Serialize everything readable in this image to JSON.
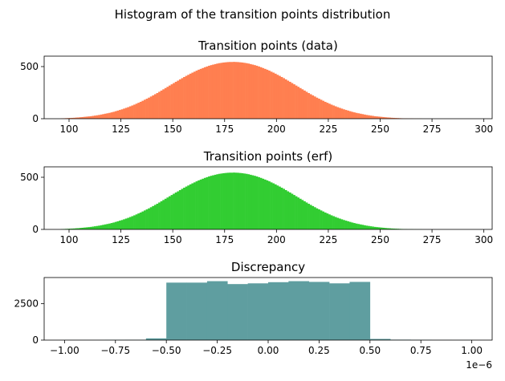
{
  "suptitle": "Histogram of the transition points distribution",
  "chart_data": [
    {
      "type": "bar",
      "title": "Transition points (data)",
      "color": "#ff7f50",
      "xlim": [
        88,
        304
      ],
      "ylim": [
        0,
        600
      ],
      "xticks": [
        100,
        125,
        150,
        175,
        200,
        225,
        250,
        275,
        300
      ],
      "yticks": [
        0,
        500
      ],
      "grid": false,
      "bin_width": 1,
      "bins_x0": [
        96,
        97,
        98,
        99,
        100,
        101,
        102,
        103,
        104,
        105,
        106,
        107,
        108,
        109,
        110,
        111,
        112,
        113,
        114,
        115,
        116,
        117,
        118,
        119,
        120,
        121,
        122,
        123,
        124,
        125,
        126,
        127,
        128,
        129,
        130,
        131,
        132,
        133,
        134,
        135,
        136,
        137,
        138,
        139,
        140,
        141,
        142,
        143,
        144,
        145,
        146,
        147,
        148,
        149,
        150,
        151,
        152,
        153,
        154,
        155,
        156,
        157,
        158,
        159,
        160,
        161,
        162,
        163,
        164,
        165,
        166,
        167,
        168,
        169,
        170,
        171,
        172,
        173,
        174,
        175,
        176,
        177,
        178,
        179,
        180,
        181,
        182,
        183,
        184,
        185,
        186,
        187,
        188,
        189,
        190,
        191,
        192,
        193,
        194,
        195,
        196,
        197,
        198,
        199,
        200,
        201,
        202,
        203,
        204,
        205,
        206,
        207,
        208,
        209,
        210,
        211,
        212,
        213,
        214,
        215,
        216,
        217,
        218,
        219,
        220,
        221,
        222,
        223,
        224,
        225,
        226,
        227,
        228,
        229,
        230,
        231,
        232,
        233,
        234,
        235,
        236,
        237,
        238,
        239,
        240,
        241,
        242,
        243,
        244,
        245,
        246,
        247,
        248,
        249,
        250,
        251,
        252,
        253,
        254,
        255,
        256,
        257,
        258,
        259,
        260,
        261,
        262,
        263,
        264,
        265,
        266,
        267,
        268,
        269,
        270,
        271,
        272,
        273,
        274,
        275,
        276,
        277,
        278,
        279,
        280,
        281,
        282,
        283,
        284,
        285,
        286,
        287
      ],
      "values": [
        3,
        4,
        5,
        6,
        7,
        8,
        9,
        11,
        12,
        14,
        16,
        18,
        20,
        22,
        24,
        27,
        30,
        33,
        36,
        40,
        44,
        48,
        52,
        56,
        61,
        66,
        72,
        78,
        84,
        90,
        97,
        104,
        111,
        119,
        127,
        135,
        144,
        153,
        162,
        172,
        182,
        192,
        202,
        213,
        224,
        235,
        246,
        258,
        270,
        282,
        294,
        306,
        318,
        330,
        342,
        354,
        365,
        377,
        389,
        400,
        411,
        421,
        432,
        442,
        451,
        461,
        470,
        478,
        486,
        494,
        501,
        508,
        514,
        519,
        524,
        529,
        533,
        536,
        539,
        541,
        543,
        544,
        544,
        545,
        544,
        543,
        541,
        539,
        536,
        533,
        529,
        524,
        519,
        514,
        508,
        501,
        494,
        486,
        478,
        470,
        461,
        451,
        442,
        432,
        421,
        411,
        400,
        389,
        377,
        365,
        354,
        342,
        330,
        318,
        306,
        294,
        282,
        270,
        258,
        246,
        235,
        224,
        213,
        202,
        192,
        182,
        172,
        162,
        153,
        144,
        135,
        127,
        119,
        111,
        104,
        97,
        90,
        84,
        78,
        72,
        66,
        61,
        56,
        52,
        48,
        44,
        40,
        36,
        33,
        30,
        27,
        24,
        22,
        20,
        18,
        16,
        14,
        12,
        11,
        9,
        8,
        7,
        6,
        5,
        4,
        3,
        3,
        2,
        2,
        2,
        1,
        1,
        1,
        1,
        0,
        0,
        0,
        0,
        0,
        0,
        0,
        0,
        0,
        0,
        0,
        0,
        0,
        0,
        0,
        0,
        0,
        0
      ]
    },
    {
      "type": "bar",
      "title": "Transition points (erf)",
      "color": "#32cd32",
      "xlim": [
        88,
        304
      ],
      "ylim": [
        0,
        600
      ],
      "xticks": [
        100,
        125,
        150,
        175,
        200,
        225,
        250,
        275,
        300
      ],
      "yticks": [
        0,
        500
      ],
      "grid": false,
      "bin_width": 1,
      "bins_x0": [
        96,
        97,
        98,
        99,
        100,
        101,
        102,
        103,
        104,
        105,
        106,
        107,
        108,
        109,
        110,
        111,
        112,
        113,
        114,
        115,
        116,
        117,
        118,
        119,
        120,
        121,
        122,
        123,
        124,
        125,
        126,
        127,
        128,
        129,
        130,
        131,
        132,
        133,
        134,
        135,
        136,
        137,
        138,
        139,
        140,
        141,
        142,
        143,
        144,
        145,
        146,
        147,
        148,
        149,
        150,
        151,
        152,
        153,
        154,
        155,
        156,
        157,
        158,
        159,
        160,
        161,
        162,
        163,
        164,
        165,
        166,
        167,
        168,
        169,
        170,
        171,
        172,
        173,
        174,
        175,
        176,
        177,
        178,
        179,
        180,
        181,
        182,
        183,
        184,
        185,
        186,
        187,
        188,
        189,
        190,
        191,
        192,
        193,
        194,
        195,
        196,
        197,
        198,
        199,
        200,
        201,
        202,
        203,
        204,
        205,
        206,
        207,
        208,
        209,
        210,
        211,
        212,
        213,
        214,
        215,
        216,
        217,
        218,
        219,
        220,
        221,
        222,
        223,
        224,
        225,
        226,
        227,
        228,
        229,
        230,
        231,
        232,
        233,
        234,
        235,
        236,
        237,
        238,
        239,
        240,
        241,
        242,
        243,
        244,
        245,
        246,
        247,
        248,
        249,
        250,
        251,
        252,
        253,
        254,
        255,
        256,
        257,
        258,
        259,
        260,
        261,
        262,
        263,
        264,
        265,
        266,
        267,
        268,
        269,
        270,
        271,
        272,
        273,
        274,
        275,
        276,
        277,
        278,
        279,
        280,
        281,
        282,
        283,
        284,
        285,
        286,
        287
      ],
      "values": [
        3,
        4,
        5,
        6,
        7,
        8,
        9,
        11,
        12,
        14,
        16,
        18,
        20,
        22,
        24,
        27,
        30,
        33,
        36,
        40,
        44,
        48,
        52,
        56,
        61,
        66,
        72,
        78,
        84,
        90,
        97,
        104,
        111,
        119,
        127,
        135,
        144,
        153,
        162,
        172,
        182,
        192,
        202,
        213,
        224,
        235,
        246,
        258,
        270,
        282,
        294,
        306,
        318,
        330,
        342,
        354,
        365,
        377,
        389,
        400,
        411,
        421,
        432,
        442,
        451,
        461,
        470,
        478,
        486,
        494,
        501,
        508,
        514,
        519,
        524,
        529,
        533,
        536,
        539,
        541,
        543,
        544,
        544,
        545,
        544,
        543,
        541,
        539,
        536,
        533,
        529,
        524,
        519,
        514,
        508,
        501,
        494,
        486,
        478,
        470,
        461,
        451,
        442,
        432,
        421,
        411,
        400,
        389,
        377,
        365,
        354,
        342,
        330,
        318,
        306,
        294,
        282,
        270,
        258,
        246,
        235,
        224,
        213,
        202,
        192,
        182,
        172,
        162,
        153,
        144,
        135,
        127,
        119,
        111,
        104,
        97,
        90,
        84,
        78,
        72,
        66,
        61,
        56,
        52,
        48,
        44,
        40,
        36,
        33,
        30,
        27,
        24,
        22,
        20,
        18,
        16,
        14,
        12,
        11,
        9,
        8,
        7,
        6,
        5,
        4,
        3,
        3,
        2,
        2,
        2,
        1,
        1,
        1,
        1,
        0,
        0,
        0,
        0,
        0,
        0,
        0,
        0,
        0,
        0,
        0,
        0,
        0,
        0,
        0,
        0,
        0,
        0
      ]
    },
    {
      "type": "bar",
      "title": "Discrepancy",
      "color": "#5f9ea0",
      "xlim": [
        -1.1,
        1.1
      ],
      "ylim": [
        0,
        4300
      ],
      "xticks": [
        -1.0,
        -0.75,
        -0.5,
        -0.25,
        0.0,
        0.25,
        0.5,
        0.75,
        1.0
      ],
      "xticklabels": [
        "−1.00",
        "−0.75",
        "−0.50",
        "−0.25",
        "0.00",
        "0.25",
        "0.50",
        "0.75",
        "1.00"
      ],
      "yticks": [
        0,
        2500
      ],
      "x_offset_label": "1e−6",
      "grid": false,
      "bin_width": 0.1,
      "bins_x0": [
        -1.0,
        -0.9,
        -0.8,
        -0.7,
        -0.6,
        -0.5,
        -0.4,
        -0.3,
        -0.2,
        -0.1,
        0.0,
        0.1,
        0.2,
        0.3,
        0.4,
        0.5,
        0.6,
        0.7,
        0.8,
        0.9
      ],
      "values": [
        8,
        10,
        15,
        20,
        120,
        3950,
        3950,
        4050,
        3850,
        3900,
        3980,
        4050,
        4000,
        3900,
        4000,
        80,
        30,
        15,
        10,
        6
      ]
    }
  ]
}
